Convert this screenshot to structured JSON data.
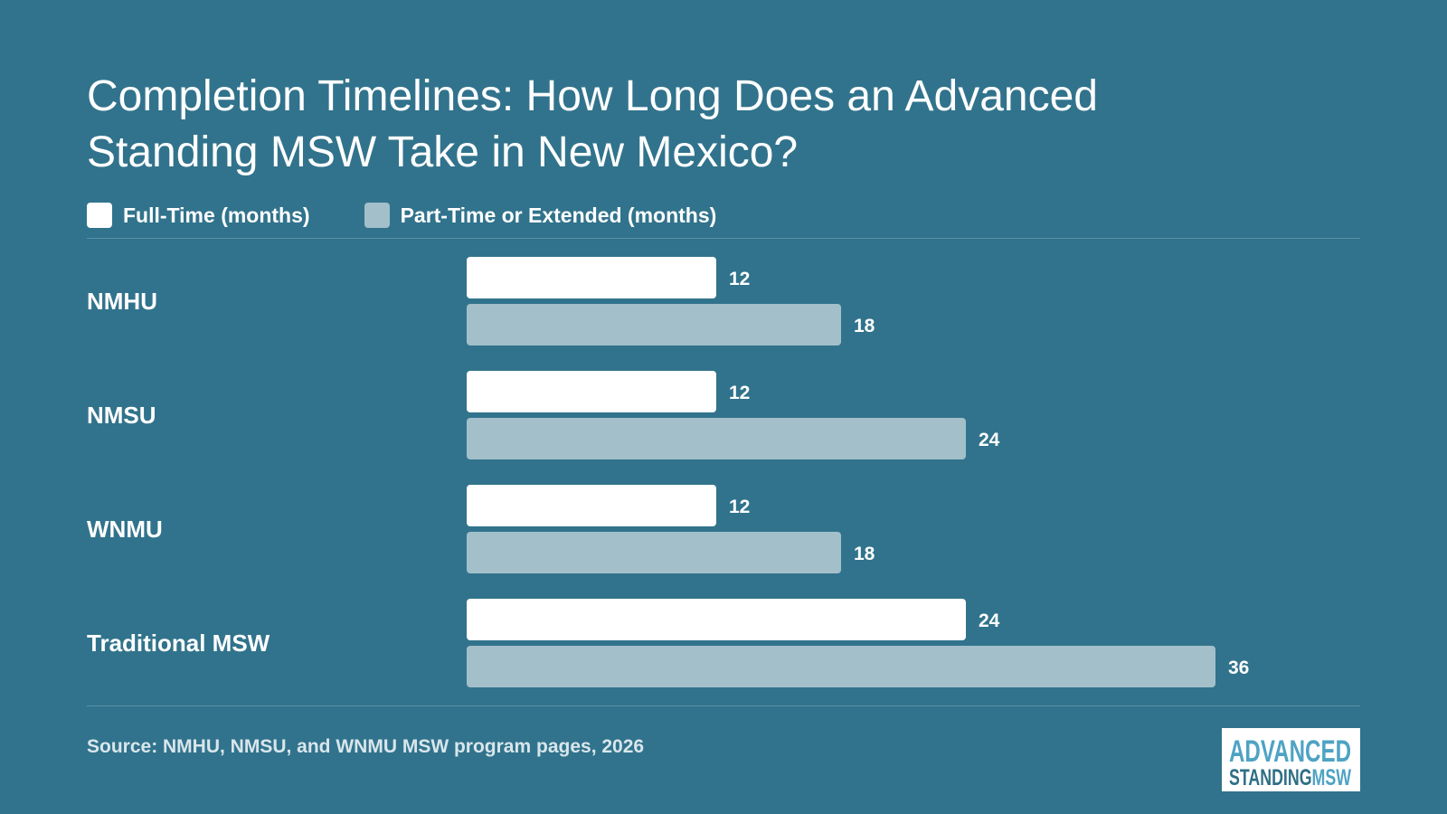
{
  "title": "Completion Timelines: How Long Does an Advanced Standing MSW Take in New Mexico?",
  "legend": {
    "full_time": "Full-Time (months)",
    "part_time": "Part-Time or Extended (months)"
  },
  "source": "Source: NMHU, NMSU, and WNMU MSW program pages, 2026",
  "logo": {
    "top": "ADVANCED",
    "bottom_left": "STANDING",
    "bottom_right": "MSW"
  },
  "colors": {
    "background": "#31738c",
    "full_time": "#ffffff",
    "part_time": "#a3bfca",
    "logo_blue": "#4ea3c4",
    "logo_dark": "#2f6f86"
  },
  "chart_data": {
    "type": "bar",
    "orientation": "horizontal",
    "categories": [
      "NMHU",
      "NMSU",
      "WNMU",
      "Traditional MSW"
    ],
    "series": [
      {
        "name": "Full-Time (months)",
        "values": [
          12,
          12,
          12,
          24
        ]
      },
      {
        "name": "Part-Time or Extended (months)",
        "values": [
          18,
          24,
          18,
          36
        ]
      }
    ],
    "xlim": [
      0,
      36
    ],
    "grid": false,
    "legend_position": "top-left",
    "data_labels": true
  }
}
